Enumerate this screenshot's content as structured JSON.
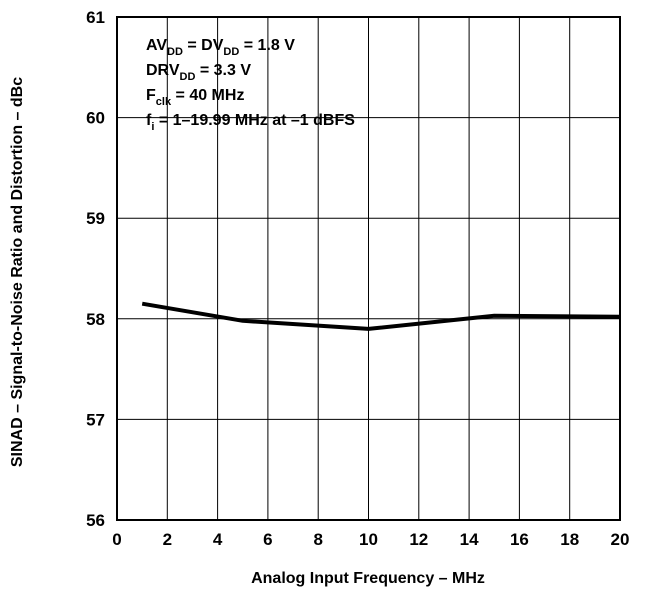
{
  "chart_data": {
    "type": "line",
    "title": "",
    "xlabel": "Analog Input Frequency – MHz",
    "ylabel": "SINAD – Signal-to-Noise Ratio and Distortion – dBc",
    "xlim": [
      0,
      20
    ],
    "ylim": [
      56,
      61
    ],
    "xticks": [
      "0",
      "2",
      "4",
      "6",
      "8",
      "10",
      "12",
      "14",
      "16",
      "18",
      "20"
    ],
    "yticks": [
      "56",
      "57",
      "58",
      "59",
      "60",
      "61"
    ],
    "grid": true,
    "series": [
      {
        "x": [
          1,
          5,
          10,
          15,
          20
        ],
        "y": [
          58.15,
          57.98,
          57.9,
          58.03,
          58.02
        ]
      }
    ],
    "annotations": [
      {
        "parts": [
          {
            "t": "AV"
          },
          {
            "t": "DD",
            "sub": true
          },
          {
            "t": " = DV"
          },
          {
            "t": "DD",
            "sub": true
          },
          {
            "t": " = 1.8 V"
          }
        ]
      },
      {
        "parts": [
          {
            "t": "DRV"
          },
          {
            "t": "DD",
            "sub": true
          },
          {
            "t": " = 3.3 V"
          }
        ]
      },
      {
        "parts": [
          {
            "t": "F"
          },
          {
            "t": "clk",
            "sub": true
          },
          {
            "t": " = 40 MHz"
          }
        ]
      },
      {
        "parts": [
          {
            "t": "f"
          },
          {
            "t": "i",
            "sub": true
          },
          {
            "t": " = 1–19.99 MHz at –1 dBFS"
          }
        ]
      }
    ]
  }
}
